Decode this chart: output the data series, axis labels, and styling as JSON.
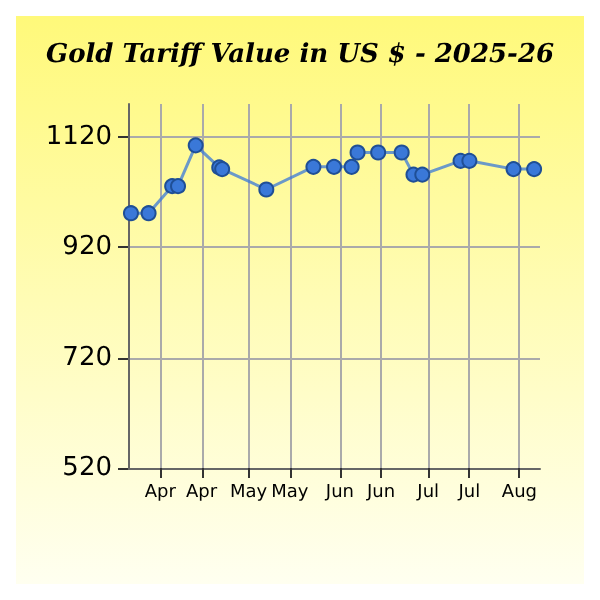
{
  "chart_data": {
    "type": "line",
    "title": "Gold Tariff Value in US $ - 2025-26",
    "x": [
      "2025-03-22",
      "2025-03-28",
      "2025-04-05",
      "2025-04-07",
      "2025-04-13",
      "2025-04-21",
      "2025-04-22",
      "2025-05-07",
      "2025-05-23",
      "2025-05-30",
      "2025-06-05",
      "2025-06-07",
      "2025-06-14",
      "2025-06-22",
      "2025-06-26",
      "2025-06-29",
      "2025-07-12",
      "2025-07-15",
      "2025-07-30",
      "2025-08-06"
    ],
    "series": [
      {
        "color": "#3a78d8",
        "values": [
          982,
          982,
          1031,
          1031,
          1105,
          1065,
          1062,
          1025,
          1066,
          1066,
          1066,
          1092,
          1092,
          1092,
          1052,
          1052,
          1077,
          1077,
          1062,
          1062
        ]
      }
    ],
    "xlim": [
      "2025-03-21",
      "2025-08-08"
    ],
    "xticks": [
      {
        "value": "2025-04-01",
        "label": "Apr"
      },
      {
        "value": "2025-04-15",
        "label": "Apr"
      },
      {
        "value": "2025-05-01",
        "label": "May"
      },
      {
        "value": "2025-05-15",
        "label": "May"
      },
      {
        "value": "2025-06-01",
        "label": "Jun"
      },
      {
        "value": "2025-06-15",
        "label": "Jun"
      },
      {
        "value": "2025-07-01",
        "label": "Jul"
      },
      {
        "value": "2025-07-15",
        "label": "Jul"
      },
      {
        "value": "2025-08-01",
        "label": "Aug"
      }
    ],
    "ylim": [
      520,
      1180
    ],
    "yticks": [
      520,
      720,
      920,
      1120
    ],
    "grid": true,
    "marker": "circle",
    "line_style": "solid"
  }
}
